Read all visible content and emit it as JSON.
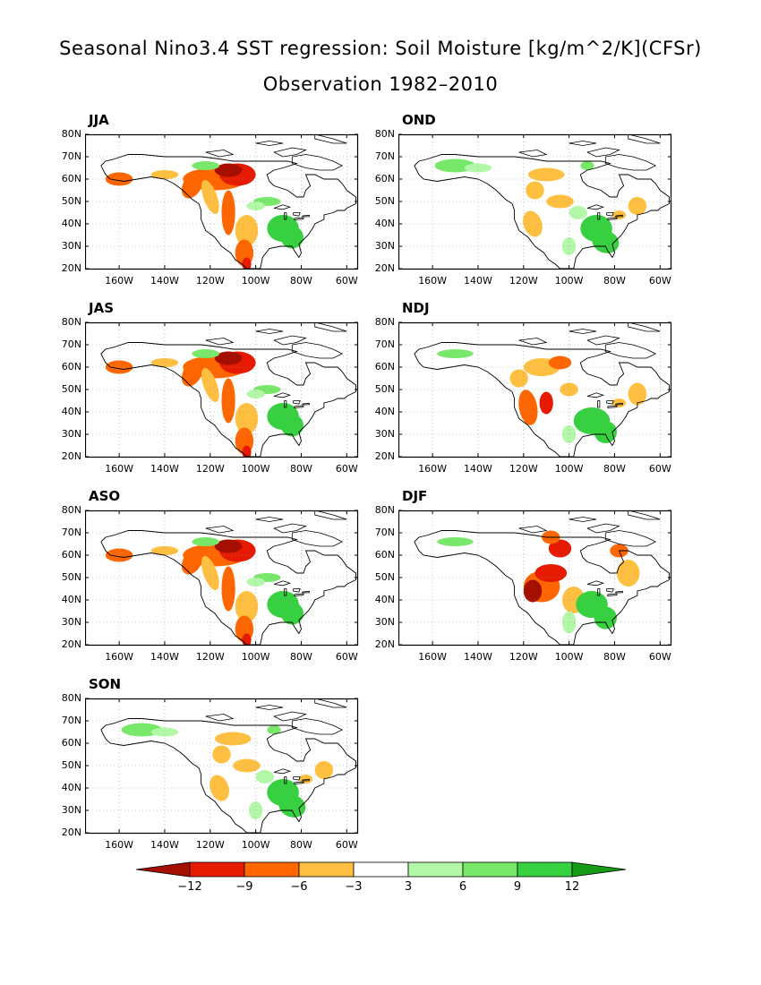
{
  "title": "Seasonal Nino3.4 SST regression: Soil Moisture [kg/m^2/K](CFSr)",
  "subtitle": "Observation 1982–2010",
  "lat_labels": [
    "80N",
    "70N",
    "60N",
    "50N",
    "40N",
    "30N",
    "20N"
  ],
  "lon_labels": [
    "160W",
    "140W",
    "120W",
    "100W",
    "80W",
    "60W"
  ],
  "panels": [
    {
      "label": "JJA",
      "pattern": "west-dry"
    },
    {
      "label": "OND",
      "pattern": "east-wet"
    },
    {
      "label": "JAS",
      "pattern": "west-dry"
    },
    {
      "label": "NDJ",
      "pattern": "mixed"
    },
    {
      "label": "ASO",
      "pattern": "west-dry"
    },
    {
      "label": "DJF",
      "pattern": "strong-dry"
    },
    {
      "label": "SON",
      "pattern": "east-wet"
    }
  ],
  "colorbar": {
    "labels": [
      "−12",
      "−9",
      "−6",
      "−3",
      "3",
      "6",
      "9",
      "12"
    ],
    "colors": [
      "#a50f00",
      "#e61a00",
      "#ff6600",
      "#ffbf40",
      "#ffffff",
      "#b3f7a8",
      "#78e86a",
      "#37d040",
      "#169b16"
    ]
  }
}
